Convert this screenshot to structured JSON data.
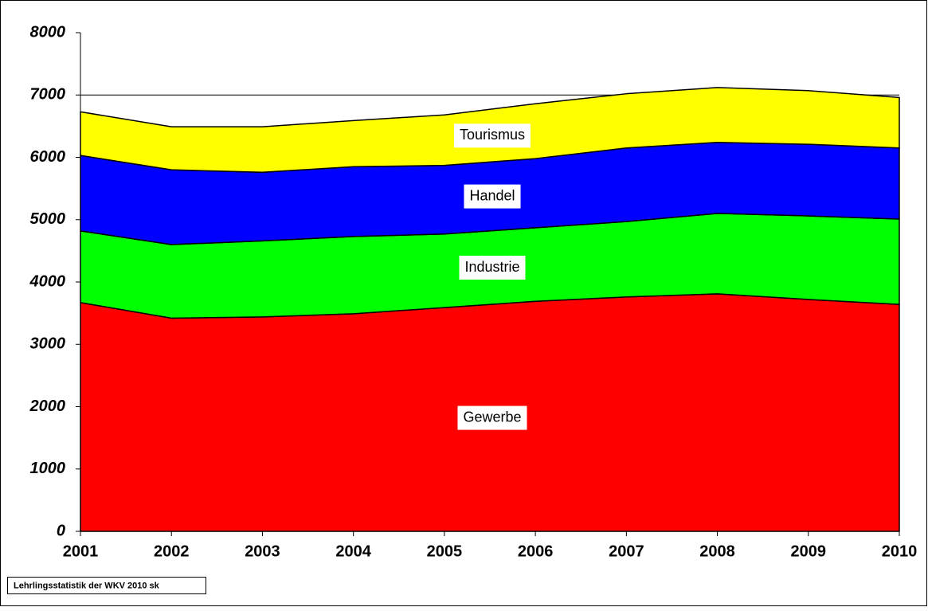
{
  "chart_data": {
    "type": "stacked_area",
    "categories": [
      "2001",
      "2002",
      "2003",
      "2004",
      "2005",
      "2006",
      "2007",
      "2008",
      "2009",
      "2010"
    ],
    "series": [
      {
        "name": "Gewerbe",
        "color": "#ff0000",
        "values": [
          3670,
          3420,
          3440,
          3490,
          3590,
          3690,
          3760,
          3810,
          3720,
          3640
        ]
      },
      {
        "name": "Industrie",
        "color": "#00ff00",
        "values": [
          1150,
          1180,
          1220,
          1240,
          1180,
          1180,
          1210,
          1290,
          1340,
          1370
        ]
      },
      {
        "name": "Handel",
        "color": "#0000ff",
        "values": [
          1210,
          1200,
          1100,
          1120,
          1100,
          1110,
          1180,
          1140,
          1150,
          1140
        ]
      },
      {
        "name": "Tourismus",
        "color": "#ffff00",
        "values": [
          700,
          690,
          730,
          740,
          810,
          880,
          870,
          880,
          860,
          810
        ]
      }
    ],
    "ylim": [
      0,
      8000
    ],
    "yticks": [
      0,
      1000,
      2000,
      3000,
      4000,
      5000,
      6000,
      7000,
      8000
    ],
    "grid": true,
    "annotation": "Lehrlingsstatistik der WKV 2010 sk"
  }
}
